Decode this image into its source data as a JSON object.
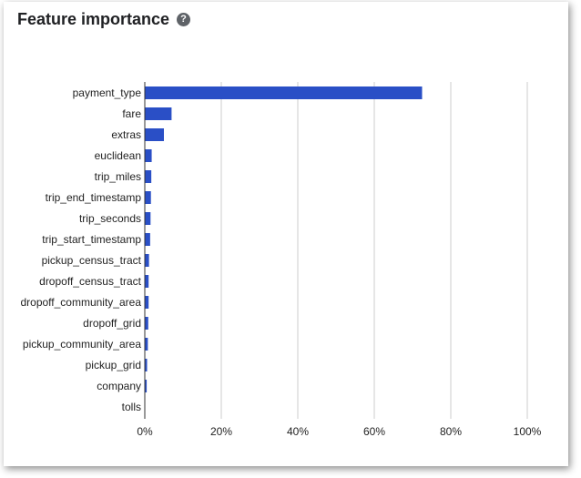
{
  "header": {
    "title": "Feature importance",
    "help_icon": "help-circle-icon",
    "help_glyph": "?"
  },
  "colors": {
    "bar": "#2a4fc6",
    "grid": "#cccccc",
    "axis": "#333333"
  },
  "chart_data": {
    "type": "bar",
    "orientation": "horizontal",
    "categories": [
      "payment_type",
      "fare",
      "extras",
      "euclidean",
      "trip_miles",
      "trip_end_timestamp",
      "trip_seconds",
      "trip_start_timestamp",
      "pickup_census_tract",
      "dropoff_census_tract",
      "dropoff_community_area",
      "dropoff_grid",
      "pickup_community_area",
      "pickup_grid",
      "company",
      "tolls"
    ],
    "values": [
      72.5,
      7.0,
      5.0,
      1.8,
      1.7,
      1.6,
      1.5,
      1.4,
      1.1,
      1.0,
      1.0,
      0.9,
      0.8,
      0.6,
      0.5,
      0.0
    ],
    "xlim": [
      0,
      100
    ],
    "xticks": [
      0,
      20,
      40,
      60,
      80,
      100
    ],
    "xtick_labels": [
      "0%",
      "20%",
      "40%",
      "60%",
      "80%",
      "100%"
    ],
    "grid": true,
    "xlabel": "",
    "ylabel": ""
  }
}
